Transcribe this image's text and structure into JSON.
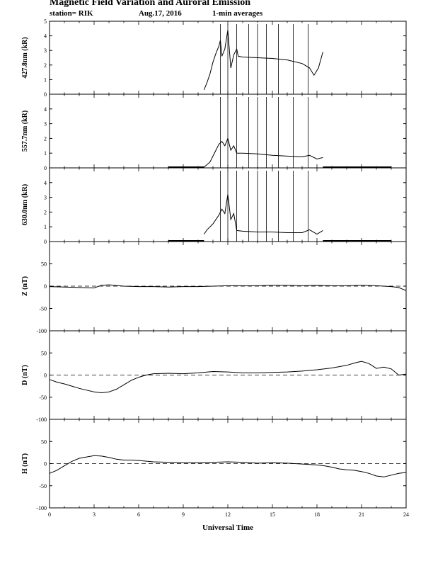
{
  "header": {
    "title": "Magnetic Field Variation and Auroral Emission",
    "station": "station= RIK",
    "date": "Aug.17, 2016",
    "averaging": "1-min averages"
  },
  "chart_data": [
    {
      "type": "line",
      "ylabel": "427.8nm (kR)",
      "xlim": [
        0,
        24
      ],
      "ylim": [
        0,
        5
      ],
      "yticks": [
        0,
        1,
        2,
        3,
        4,
        5
      ],
      "ytick_labels": [
        "0",
        "1",
        "2",
        "3",
        "4",
        "5"
      ],
      "x": [
        10.4,
        10.6,
        10.8,
        11.0,
        11.2,
        11.4,
        11.5,
        11.6,
        11.8,
        12.0,
        12.2,
        12.4,
        12.6,
        12.7,
        13.0,
        14.0,
        15.0,
        16.0,
        17.0,
        17.5,
        17.8,
        18.1,
        18.4
      ],
      "y": [
        0.3,
        0.8,
        1.4,
        2.2,
        2.8,
        3.3,
        3.7,
        2.6,
        3.1,
        4.4,
        1.8,
        2.7,
        3.1,
        2.6,
        2.55,
        2.5,
        2.45,
        2.35,
        2.1,
        1.8,
        1.3,
        1.8,
        2.9
      ],
      "gaps": [
        11.5,
        12.0,
        12.6,
        13.4,
        14.0,
        14.6,
        15.4,
        16.4,
        17.4
      ]
    },
    {
      "type": "line",
      "ylabel": "557.7nm (kR)",
      "xlim": [
        0,
        24
      ],
      "ylim": [
        0,
        5
      ],
      "yticks": [
        0,
        1,
        2,
        3,
        4
      ],
      "ytick_labels": [
        "0",
        "1",
        "2",
        "3",
        "4"
      ],
      "baseline_segments": [
        [
          8.0,
          10.4
        ],
        [
          18.4,
          23.0
        ]
      ],
      "x": [
        10.4,
        10.8,
        11.0,
        11.2,
        11.4,
        11.6,
        11.8,
        12.0,
        12.2,
        12.4,
        12.6,
        13.0,
        14.0,
        15.0,
        16.0,
        17.0,
        17.5,
        18.0,
        18.4
      ],
      "y": [
        0.05,
        0.4,
        0.8,
        1.2,
        1.6,
        1.8,
        1.5,
        2.0,
        1.2,
        1.5,
        1.0,
        1.0,
        0.95,
        0.85,
        0.8,
        0.75,
        0.85,
        0.6,
        0.7
      ],
      "gaps": [
        11.5,
        12.0,
        12.6,
        13.4,
        14.0,
        14.6,
        15.4,
        16.4,
        17.4
      ]
    },
    {
      "type": "line",
      "ylabel": "630.0nm (kR)",
      "xlim": [
        0,
        24
      ],
      "ylim": [
        0,
        5
      ],
      "yticks": [
        0,
        1,
        2,
        3,
        4
      ],
      "ytick_labels": [
        "0",
        "1",
        "2",
        "3",
        "4"
      ],
      "baseline_segments": [
        [
          8.0,
          10.4
        ],
        [
          18.4,
          23.0
        ]
      ],
      "x": [
        10.4,
        10.6,
        10.8,
        11.0,
        11.2,
        11.4,
        11.6,
        11.8,
        12.0,
        12.2,
        12.4,
        12.6,
        13.0,
        14.0,
        15.0,
        16.0,
        17.0,
        17.5,
        18.0,
        18.4
      ],
      "y": [
        0.5,
        0.8,
        1.0,
        1.2,
        1.5,
        1.8,
        2.2,
        1.9,
        3.2,
        1.5,
        1.9,
        0.75,
        0.7,
        0.65,
        0.65,
        0.6,
        0.6,
        0.8,
        0.5,
        0.75
      ],
      "gaps": [
        11.5,
        12.0,
        12.6,
        13.4,
        14.0,
        14.6,
        15.4,
        16.4,
        17.4
      ]
    },
    {
      "type": "line",
      "ylabel": "Z (nT)",
      "xlim": [
        0,
        24
      ],
      "ylim": [
        -100,
        100
      ],
      "yticks": [
        -100,
        -50,
        0,
        50
      ],
      "ytick_labels": [
        "-100",
        "-50",
        "0",
        "50"
      ],
      "zero_line": "dashed",
      "x": [
        0,
        1,
        2,
        3,
        3.5,
        4,
        5,
        6,
        7,
        8,
        9,
        10,
        11,
        12,
        13,
        14,
        15,
        16,
        17,
        18,
        19,
        20,
        21,
        22,
        23,
        23.5,
        24
      ],
      "y": [
        -1,
        -2,
        -3,
        -4,
        2,
        3,
        0,
        -1,
        -1,
        -2,
        -1,
        -1,
        0,
        1,
        1,
        1,
        2,
        2,
        1,
        2,
        1,
        1,
        2,
        1,
        -1,
        -3,
        -10
      ]
    },
    {
      "type": "line",
      "ylabel": "D (nT)",
      "xlim": [
        0,
        24
      ],
      "ylim": [
        -100,
        100
      ],
      "yticks": [
        -100,
        -50,
        0,
        50
      ],
      "ytick_labels": [
        "-100",
        "-50",
        "0",
        "50"
      ],
      "zero_line": "dashed",
      "x": [
        0,
        0.5,
        1,
        1.5,
        2,
        2.5,
        3,
        3.5,
        4,
        4.5,
        5,
        5.5,
        6,
        6.5,
        7,
        8,
        9,
        10,
        11,
        12,
        13,
        14,
        15,
        16,
        17,
        18,
        19,
        19.5,
        20,
        20.5,
        21,
        21.5,
        22,
        22.5,
        23,
        23.5,
        24
      ],
      "y": [
        -10,
        -16,
        -20,
        -25,
        -30,
        -34,
        -38,
        -40,
        -38,
        -32,
        -22,
        -12,
        -5,
        0,
        3,
        4,
        3,
        5,
        8,
        7,
        5,
        5,
        6,
        7,
        9,
        12,
        16,
        19,
        22,
        27,
        31,
        26,
        15,
        18,
        14,
        0,
        2
      ]
    },
    {
      "type": "line",
      "ylabel": "H (nT)",
      "xlim": [
        0,
        24
      ],
      "ylim": [
        -100,
        100
      ],
      "yticks": [
        -100,
        -50,
        0,
        50
      ],
      "ytick_labels": [
        "-100",
        "-50",
        "0",
        "50"
      ],
      "xticks": [
        0,
        3,
        6,
        9,
        12,
        15,
        18,
        21,
        24
      ],
      "xtick_labels": [
        "0",
        "3",
        "6",
        "9",
        "12",
        "15",
        "18",
        "21",
        "24"
      ],
      "xlabel": "Universal Time",
      "zero_line": "dashed",
      "x": [
        0,
        0.5,
        1,
        1.5,
        2,
        2.5,
        3,
        3.5,
        4,
        4.5,
        5,
        5.5,
        6,
        7,
        8,
        9,
        10,
        11,
        12,
        13,
        14,
        15,
        16,
        17,
        18,
        18.5,
        19,
        19.5,
        20,
        20.5,
        21,
        21.5,
        22,
        22.5,
        23,
        23.5,
        24
      ],
      "y": [
        -22,
        -15,
        -5,
        5,
        12,
        15,
        18,
        17,
        14,
        10,
        8,
        8,
        7,
        4,
        3,
        2,
        2,
        3,
        4,
        3,
        1,
        2,
        1,
        -1,
        -3,
        -5,
        -8,
        -12,
        -14,
        -15,
        -18,
        -22,
        -28,
        -30,
        -26,
        -22,
        -20
      ]
    }
  ]
}
